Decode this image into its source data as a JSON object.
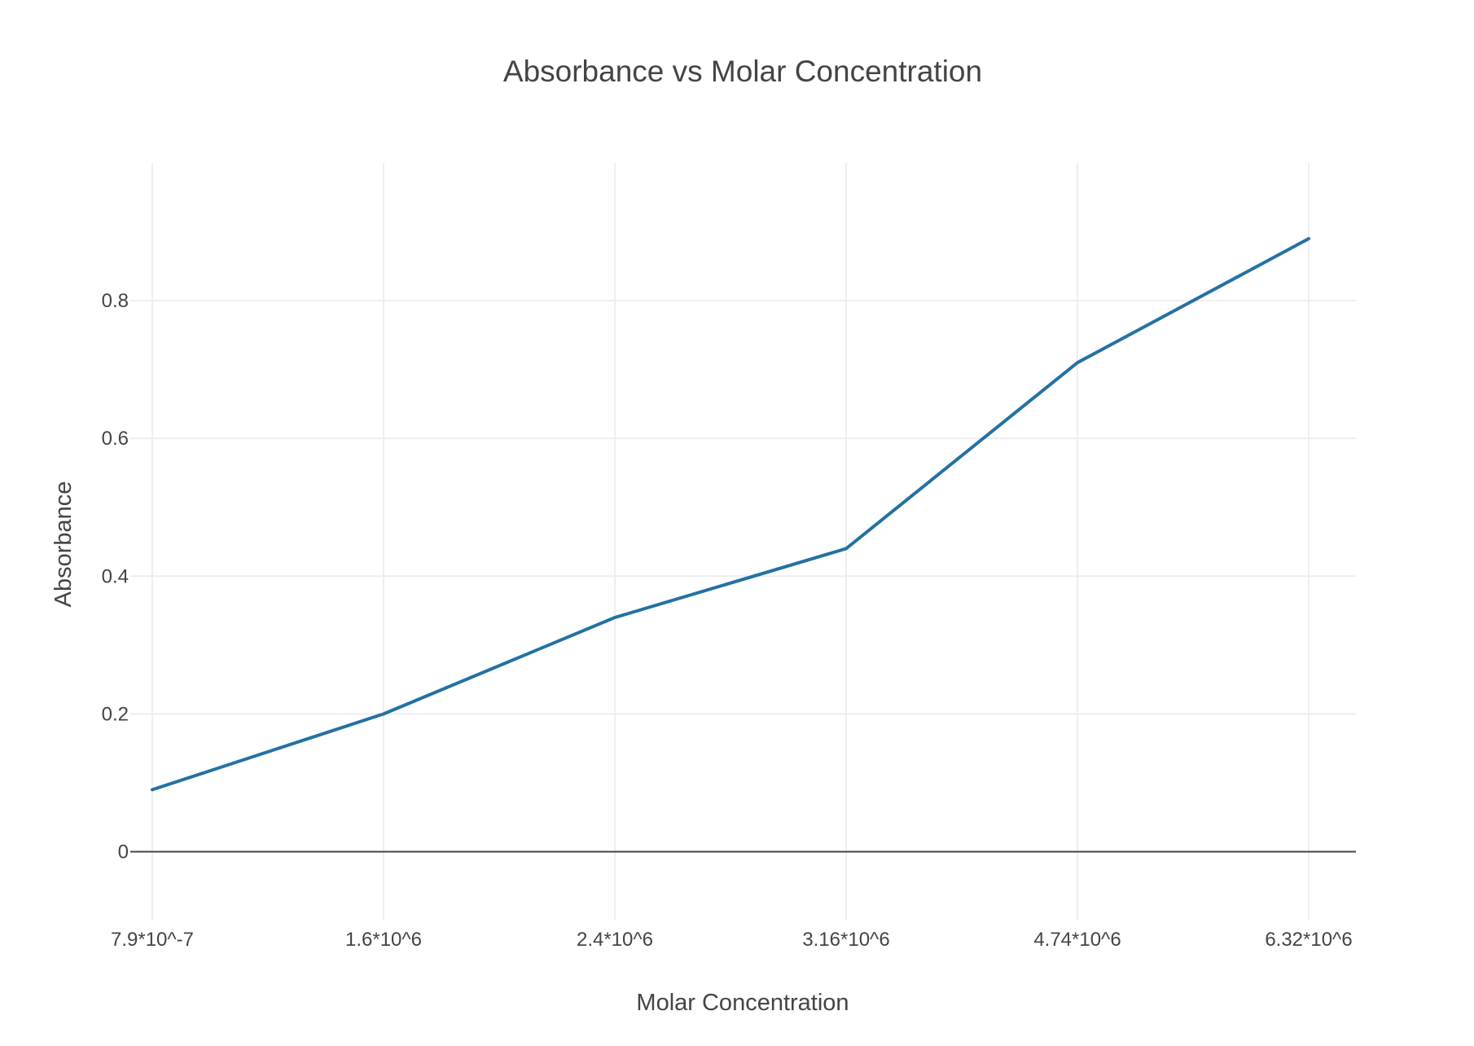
{
  "chart_data": {
    "type": "line",
    "title": "Absorbance vs Molar Concentration",
    "xlabel": "Molar Concentration",
    "ylabel": "Absorbance",
    "categories": [
      "7.9*10^-7",
      "1.6*10^6",
      "2.4*10^6",
      "3.16*10^6",
      "4.74*10^6",
      "6.32*10^6"
    ],
    "series": [
      {
        "values": [
          0.09,
          0.2,
          0.34,
          0.44,
          0.71,
          0.89
        ],
        "color": "#2471a3"
      }
    ],
    "ylim": [
      -0.1,
      1.0
    ],
    "yticks": [
      0,
      0.2,
      0.4,
      0.6,
      0.8
    ],
    "ytick_labels": [
      "0",
      "0.2",
      "0.4",
      "0.6",
      "0.8"
    ],
    "grid": true,
    "legend": "none"
  }
}
